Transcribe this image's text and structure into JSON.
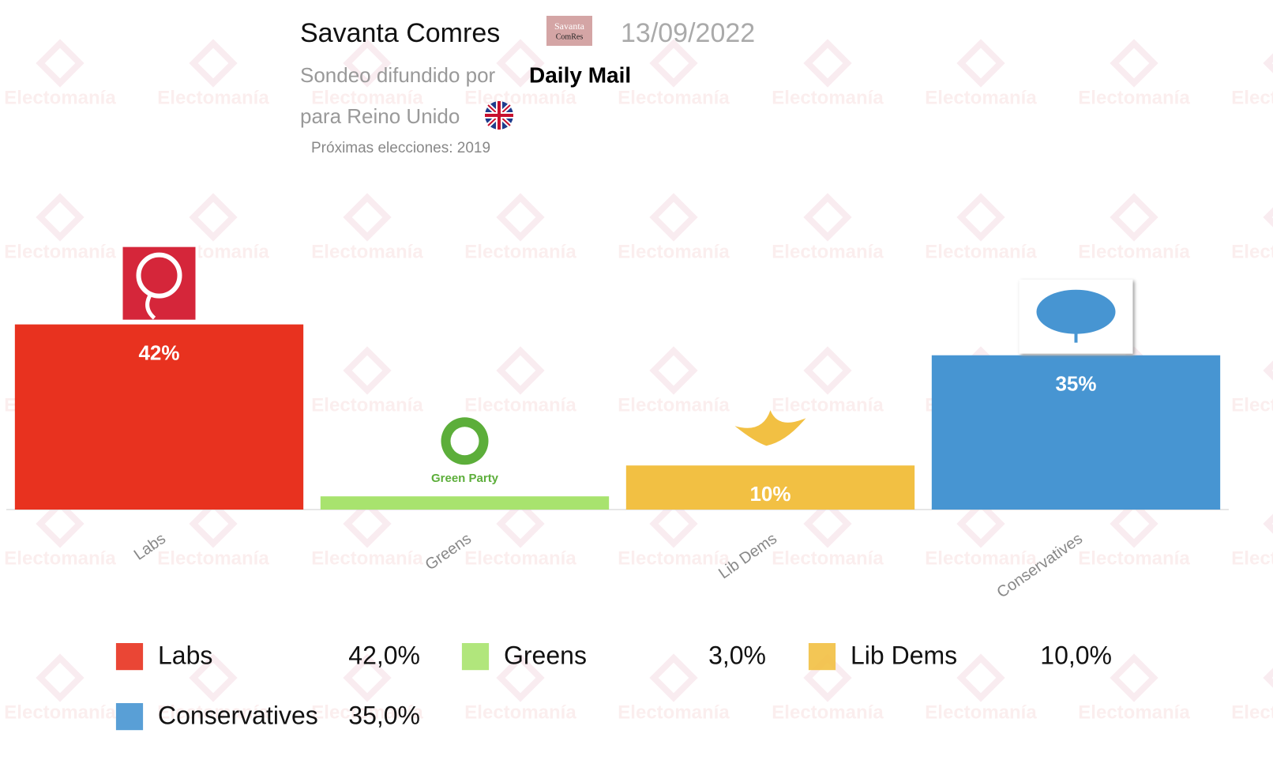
{
  "header": {
    "pollster": "Savanta Comres",
    "pollster_logo": [
      "Savanta",
      "ComRes"
    ],
    "date": "13/09/2022",
    "published_by_label": "Sondeo difundido por",
    "media": "Daily Mail",
    "country_label": "para Reino Unido",
    "next_elections": "Próximas elecciones: 2019",
    "watermark": "Electomanía"
  },
  "chart_data": {
    "type": "bar",
    "categories": [
      "Labs",
      "Greens",
      "Lib Dems",
      "Conservatives"
    ],
    "values": [
      42,
      3,
      10,
      35
    ],
    "value_labels": [
      "42%",
      null,
      "10%",
      "35%"
    ],
    "legend_labels": [
      "42,0%",
      "3,0%",
      "10,0%",
      "35,0%"
    ],
    "logo_labels": [
      null,
      "Green Party",
      null,
      null
    ],
    "colors": [
      "#e8321f",
      "#a8e36e",
      "#f2c043",
      "#4795d2"
    ],
    "ylim": [
      0,
      50
    ]
  }
}
